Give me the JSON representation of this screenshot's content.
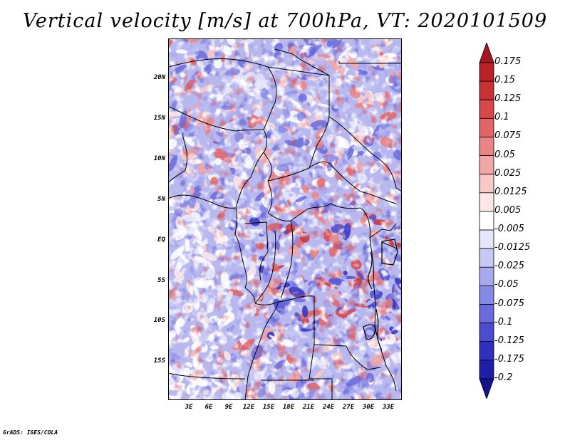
{
  "title": "Vertical velocity [m/s] at 700hPa, VT: 2020101509",
  "footer": "GrADS: IGES/COLA",
  "latitude_labels": [
    "20N",
    "15N",
    "10N",
    "5N",
    "EQ",
    "5S",
    "10S",
    "15S"
  ],
  "longitude_labels": [
    "3E",
    "6E",
    "9E",
    "12E",
    "15E",
    "18E",
    "21E",
    "24E",
    "27E",
    "30E",
    "33E"
  ],
  "colorbar": {
    "labels": [
      "0.175",
      "0.15",
      "0.125",
      "0.1",
      "0.075",
      "0.05",
      "0.025",
      "0.0125",
      "0.005",
      "-0.005",
      "-0.0125",
      "-0.025",
      "-0.05",
      "-0.075",
      "-0.1",
      "-0.125",
      "-0.175",
      "-0.2"
    ],
    "colors": [
      "#a41620",
      "#b92328",
      "#ca3134",
      "#d8484a",
      "#e26464",
      "#ea8484",
      "#f2a6a6",
      "#f8c8c6",
      "#fde8e6",
      "#ffffff",
      "#e6e6fb",
      "#c8c8f5",
      "#a8a8ee",
      "#8888e6",
      "#6a6adc",
      "#4c4cd0",
      "#3030c0",
      "#1e1ea8",
      "#14148e"
    ]
  },
  "chart_data": {
    "type": "heatmap",
    "title": "Vertical velocity [m/s] at 700hPa, VT: 2020101509",
    "variable": "Vertical velocity",
    "units": "m/s",
    "level": "700hPa",
    "valid_time": "2020101509",
    "lat_range": [
      -20,
      25
    ],
    "lon_range": [
      0,
      35
    ],
    "value_range": [
      -0.2,
      0.175
    ]
  }
}
